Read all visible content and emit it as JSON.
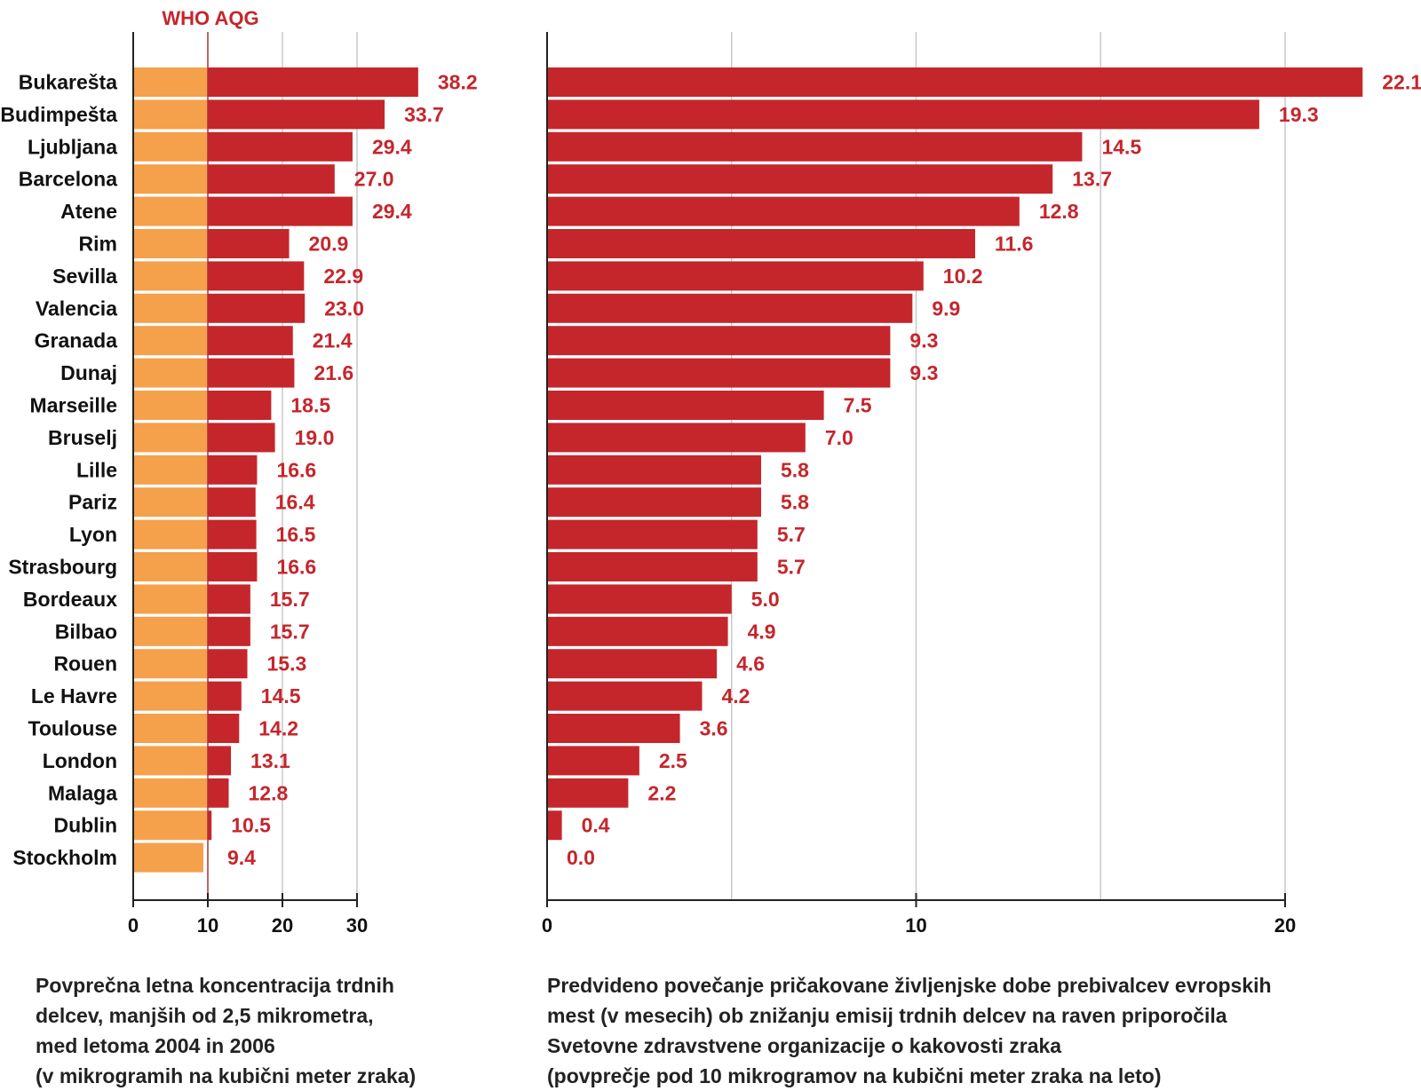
{
  "colors": {
    "below_limit": "#f5a04b",
    "above_limit": "#c5262c",
    "value_label": "#c5262c",
    "who_line": "#a8323a",
    "grid": "#c8c8c8",
    "axis": "#222222"
  },
  "chart_data": [
    {
      "type": "bar",
      "orientation": "horizontal",
      "stacked_threshold": 10,
      "reference_line": {
        "value": 10,
        "label": "WHO AQG"
      },
      "categories": [
        "Bukarešta",
        "Budimpešta",
        "Ljubljana",
        "Barcelona",
        "Atene",
        "Rim",
        "Sevilla",
        "Valencia",
        "Granada",
        "Dunaj",
        "Marseille",
        "Bruselj",
        "Lille",
        "Pariz",
        "Lyon",
        "Strasbourg",
        "Bordeaux",
        "Bilbao",
        "Rouen",
        "Le Havre",
        "Toulouse",
        "London",
        "Malaga",
        "Dublin",
        "Stockholm"
      ],
      "values": [
        38.2,
        33.7,
        29.4,
        27.0,
        29.4,
        20.9,
        22.9,
        23.0,
        21.4,
        21.6,
        18.5,
        19.0,
        16.6,
        16.4,
        16.5,
        16.6,
        15.7,
        15.7,
        15.3,
        14.5,
        14.2,
        13.1,
        12.8,
        10.5,
        9.4
      ],
      "value_labels": [
        "38.2",
        "33.7",
        "29.4",
        "27.0",
        "29.4",
        "20.9",
        "22.9",
        "23.0",
        "21.4",
        "21.6",
        "18.5",
        "19.0",
        "16.6",
        "16.4",
        "16.5",
        "16.6",
        "15.7",
        "15.7",
        "15.3",
        "14.5",
        "14.2",
        "13.1",
        "12.8",
        "10.5",
        "9.4"
      ],
      "xlim": [
        0,
        30
      ],
      "xticks": [
        0,
        10,
        20,
        30
      ],
      "xtick_labels": [
        "0",
        "10",
        "20",
        "30"
      ],
      "grid": true,
      "caption": [
        "Povprečna letna koncentracija trdnih",
        "delcev, manjših od 2,5 mikrometra,",
        "med letoma 2004 in 2006",
        "(v mikrogramih na kubični meter zraka)"
      ]
    },
    {
      "type": "bar",
      "orientation": "horizontal",
      "categories": [
        "Bukarešta",
        "Budimpešta",
        "Ljubljana",
        "Barcelona",
        "Atene",
        "Rim",
        "Sevilla",
        "Valencia",
        "Granada",
        "Dunaj",
        "Marseille",
        "Bruselj",
        "Lille",
        "Pariz",
        "Lyon",
        "Strasbourg",
        "Bordeaux",
        "Bilbao",
        "Rouen",
        "Le Havre",
        "Toulouse",
        "London",
        "Malaga",
        "Dublin",
        "Stockholm"
      ],
      "values": [
        22.1,
        19.3,
        14.5,
        13.7,
        12.8,
        11.6,
        10.2,
        9.9,
        9.3,
        9.3,
        7.5,
        7.0,
        5.8,
        5.8,
        5.7,
        5.7,
        5.0,
        4.9,
        4.6,
        4.2,
        3.6,
        2.5,
        2.2,
        0.4,
        0.0
      ],
      "value_labels": [
        "22.1",
        "19.3",
        "14.5",
        "13.7",
        "12.8",
        "11.6",
        "10.2",
        "9.9",
        "9.3",
        "9.3",
        "7.5",
        "7.0",
        "5.8",
        "5.8",
        "5.7",
        "5.7",
        "5.0",
        "4.9",
        "4.6",
        "4.2",
        "3.6",
        "2.5",
        "2.2",
        "0.4",
        "0.0"
      ],
      "xlim": [
        0,
        20
      ],
      "xticks": [
        0,
        10,
        20
      ],
      "xtick_labels": [
        "0",
        "10",
        "20"
      ],
      "gridlines": [
        5,
        10,
        15,
        20
      ],
      "grid": true,
      "caption": [
        "Predvideno povečanje pričakovane življenjske dobe prebivalcev evropskih",
        "mest (v mesecih) ob znižanju emisij trdnih delcev na raven priporočila",
        "Svetovne zdravstvene organizacije o kakovosti zraka",
        "(povprečje pod 10 mikrogramov na kubični meter zraka na leto)"
      ]
    }
  ]
}
